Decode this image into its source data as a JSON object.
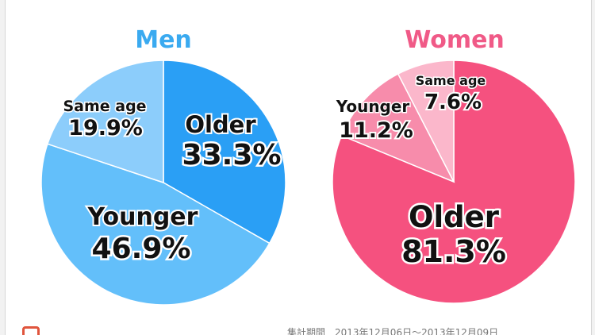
{
  "chart_data": [
    {
      "type": "pie",
      "title": "Men",
      "title_color": "#3aaaf0",
      "start": "top, clockwise",
      "slices": [
        {
          "name": "Older",
          "value": 33.3,
          "label": "33.3%",
          "color": "#2a9ff5"
        },
        {
          "name": "Younger",
          "value": 46.9,
          "label": "46.9%",
          "color": "#63bffa"
        },
        {
          "name": "Same age",
          "value": 19.9,
          "label": "19.9%",
          "color": "#8ccdfb"
        }
      ]
    },
    {
      "type": "pie",
      "title": "Women",
      "title_color": "#f05a87",
      "start": "top, clockwise",
      "slices": [
        {
          "name": "Older",
          "value": 81.3,
          "label": "81.3%",
          "color": "#f5517f"
        },
        {
          "name": "Younger",
          "value": 11.2,
          "label": "11.2%",
          "color": "#f78cab"
        },
        {
          "name": "Same age",
          "value": 7.6,
          "label": "7.6%",
          "color": "#fbb7cb"
        }
      ]
    }
  ],
  "footer": {
    "period": "集計期間　2013年12月06日～2013年12月09日"
  }
}
